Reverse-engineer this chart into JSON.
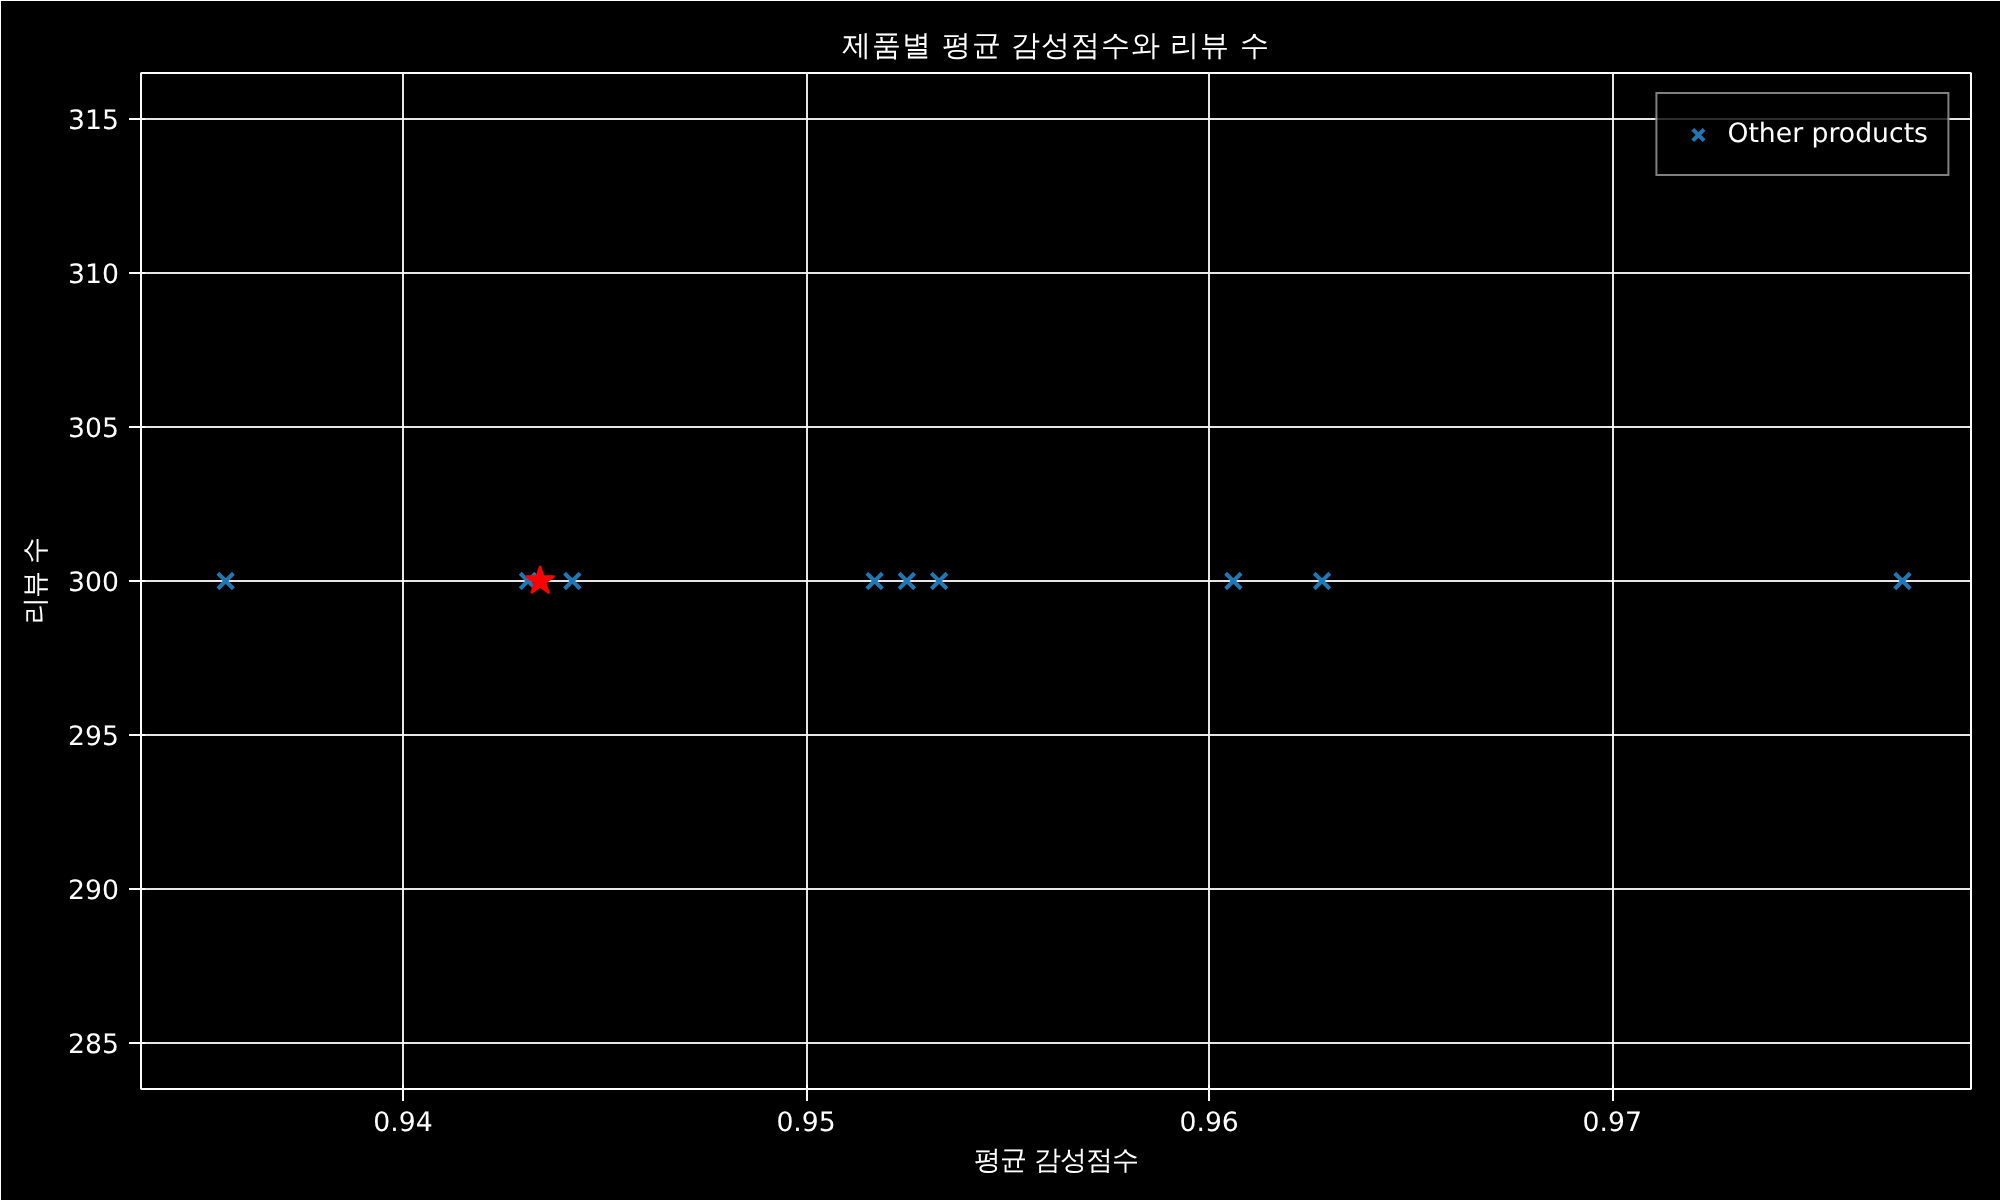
{
  "chart_data": {
    "type": "scatter",
    "title": "제품별 평균 감성점수와 리뷰 수",
    "xlabel": "평균 감성점수",
    "ylabel": "리뷰 수",
    "series": [
      {
        "name": "Other products",
        "color": "#1f77b4",
        "marker": "cross",
        "x": [
          0.9356,
          0.9431,
          0.9442,
          0.9517,
          0.9525,
          0.9533,
          0.9606,
          0.9628,
          0.9772
        ],
        "values": [
          300,
          300,
          300,
          300,
          300,
          300,
          300,
          300,
          300
        ]
      },
      {
        "color": "#ff0000",
        "marker": "star",
        "x": [
          0.9434
        ],
        "values": [
          300
        ]
      }
    ],
    "xlim": [
      0.9335,
      0.9789
    ],
    "xticks": [
      {
        "value": 0.94,
        "label": "0.94"
      },
      {
        "value": 0.95,
        "label": "0.95"
      },
      {
        "value": 0.96,
        "label": "0.96"
      },
      {
        "value": 0.97,
        "label": "0.97"
      }
    ],
    "ylim": [
      283.5,
      316.5
    ],
    "yticks": [
      285,
      290,
      295,
      300,
      305,
      310,
      315
    ],
    "grid": true,
    "legend": "top right"
  }
}
